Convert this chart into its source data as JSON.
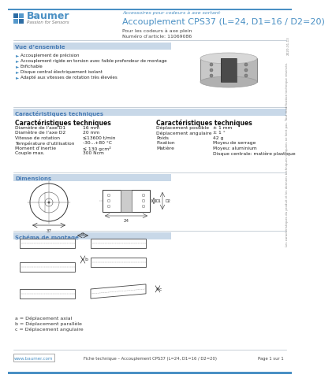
{
  "bg_color": "#ffffff",
  "header_blue": "#4a90c4",
  "section_bg": "#c8d8e8",
  "section_title_color": "#4a7db5",
  "text_color": "#222222",
  "gray_mid": "#b0bcc8",
  "logo_text": "Baumer",
  "logo_sub": "Passion for Sensors",
  "header_sub": "Accessoires pour codeurs à axe sortant",
  "header_title": "Accouplement CPS37 (L=24, D1=16 / D2=20)",
  "header_desc1": "Pour les codeurs à axe plein",
  "header_desc2": "Numéro d’article: 11069086",
  "section1_title": "Vue d’ensemble",
  "bullets": [
    "Accouplement de précision",
    "Accouplement rigide en torsion avec faible profondeur de montage",
    "Enfichable",
    "Disque central électriquement isolant",
    "Adapté aux vitesses de rotation très élevées"
  ],
  "section2_title": "Caractéristiques techniques",
  "left_specs_title": "Caractéristiques techniques",
  "left_specs": [
    [
      "Diamètre de l’axe D1",
      "16 mm"
    ],
    [
      "Diamètre de l’axe D2",
      "20 mm"
    ],
    [
      "Vitesse de rotation",
      "≤13600 t/min"
    ],
    [
      "Température d’utilisation",
      "-30...+80 °C"
    ],
    [
      "Moment d’inertie",
      "≤ 130 gcm²"
    ],
    [
      "Couple max.",
      "300 Ncm"
    ]
  ],
  "right_specs_title": "Caractéristiques techniques",
  "right_specs": [
    [
      "Déplacement possible",
      "± 1 mm"
    ],
    [
      "Déplacement angulaire",
      "± 1 °"
    ],
    [
      "Poids",
      "42 g"
    ],
    [
      "Fixation",
      "Moyeu de serrage"
    ],
    [
      "Matière",
      "Moyeu: aluminium"
    ],
    [
      "",
      "Disque centrale: matière plastique"
    ]
  ],
  "section3_title": "Dimensions",
  "section4_title": "Schéma de montage",
  "legend_a": "a = Déplacement axial",
  "legend_b": "b = Déplacement parallèle",
  "legend_c": "c = Déplacement angulaire",
  "footer_url": "www.baumer.com",
  "footer_text": "Fiche technique – Accouplement CPS37 (L=24, D1=16 / D2=20)",
  "footer_page": "Page 1 sur 1",
  "sidebar_text": "Les caractéristiques du produit et les données techniques indiquées ne lient pas. Tout modification technique réservée.",
  "date_text": "2020-01-13"
}
